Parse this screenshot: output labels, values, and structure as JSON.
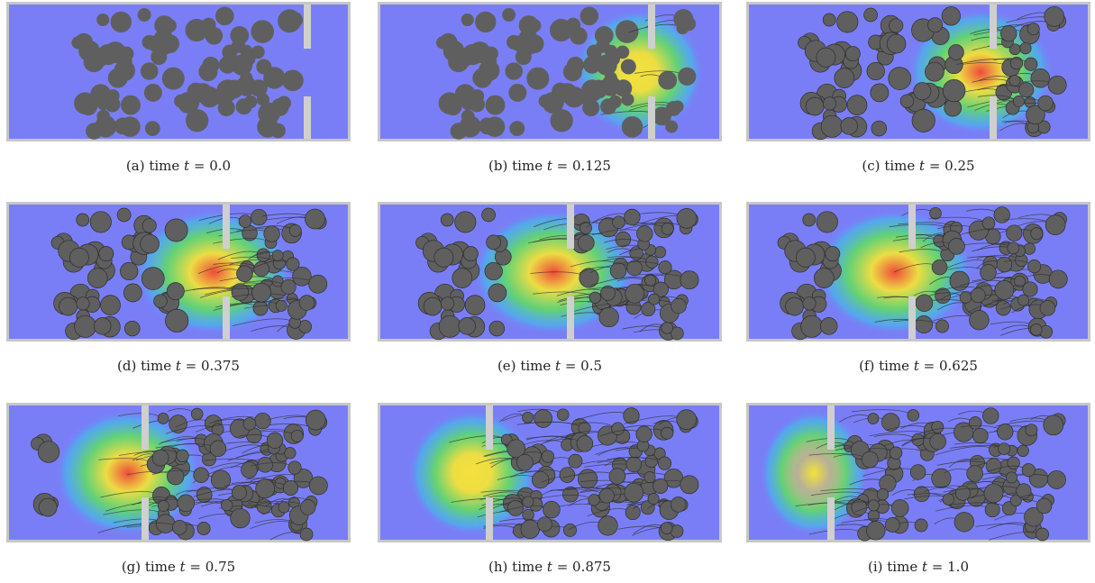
{
  "colors": {
    "fluid": "#7a7ef6",
    "wall": "#cfcfcf",
    "frame": "#c7c7c7",
    "particle": "#5f5f5f",
    "edge": "#2e2e2e",
    "cyan": "#38c6e8",
    "green": "#5fe05f",
    "yellow": "#f3e23a",
    "red": "#ef4a3a"
  },
  "panels": [
    {
      "label": "(a)",
      "word": "time",
      "math": "t",
      "eq": " = 0.0",
      "time": 0.0
    },
    {
      "label": "(b)",
      "word": "time",
      "math": "t",
      "eq": " = 0.125",
      "time": 0.125
    },
    {
      "label": "(c)",
      "word": "time",
      "math": "t",
      "eq": " = 0.25",
      "time": 0.25
    },
    {
      "label": "(d)",
      "word": "time",
      "math": "t",
      "eq": " = 0.375",
      "time": 0.375
    },
    {
      "label": "(e)",
      "word": "time",
      "math": "t",
      "eq": " = 0.5",
      "time": 0.5
    },
    {
      "label": "(f)",
      "word": "time",
      "math": "t",
      "eq": " = 0.625",
      "time": 0.625
    },
    {
      "label": "(g)",
      "word": "time",
      "math": "t",
      "eq": " = 0.75",
      "time": 0.75
    },
    {
      "label": "(h)",
      "word": "time",
      "math": "t",
      "eq": " = 0.875",
      "time": 0.875
    },
    {
      "label": "(i)",
      "word": "time",
      "math": "t",
      "eq": " = 1.0",
      "time": 1.0
    }
  ]
}
